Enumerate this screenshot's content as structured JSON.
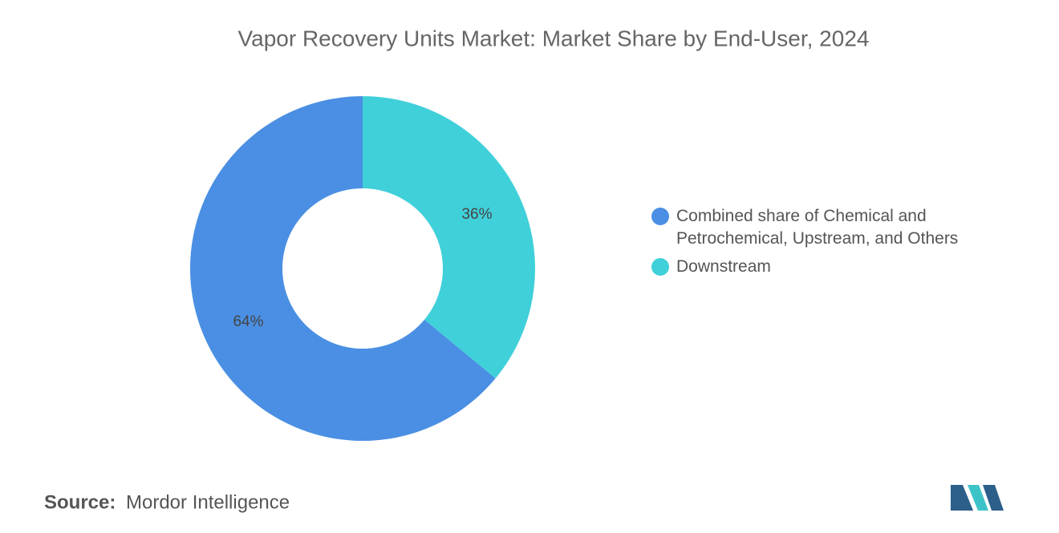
{
  "chart_data": {
    "type": "pie",
    "title": "Vapor Recovery Units Market: Market Share by End-User, 2024",
    "categories": [
      "Combined share of Chemical and Petrochemical, Upstream, and Others",
      "Downstream"
    ],
    "values": [
      64,
      36
    ],
    "value_labels": [
      "64%",
      "36%"
    ],
    "colors": [
      "#4a8fe3",
      "#40d0da"
    ],
    "source_label": "Source:",
    "source": "Mordor Intelligence"
  }
}
